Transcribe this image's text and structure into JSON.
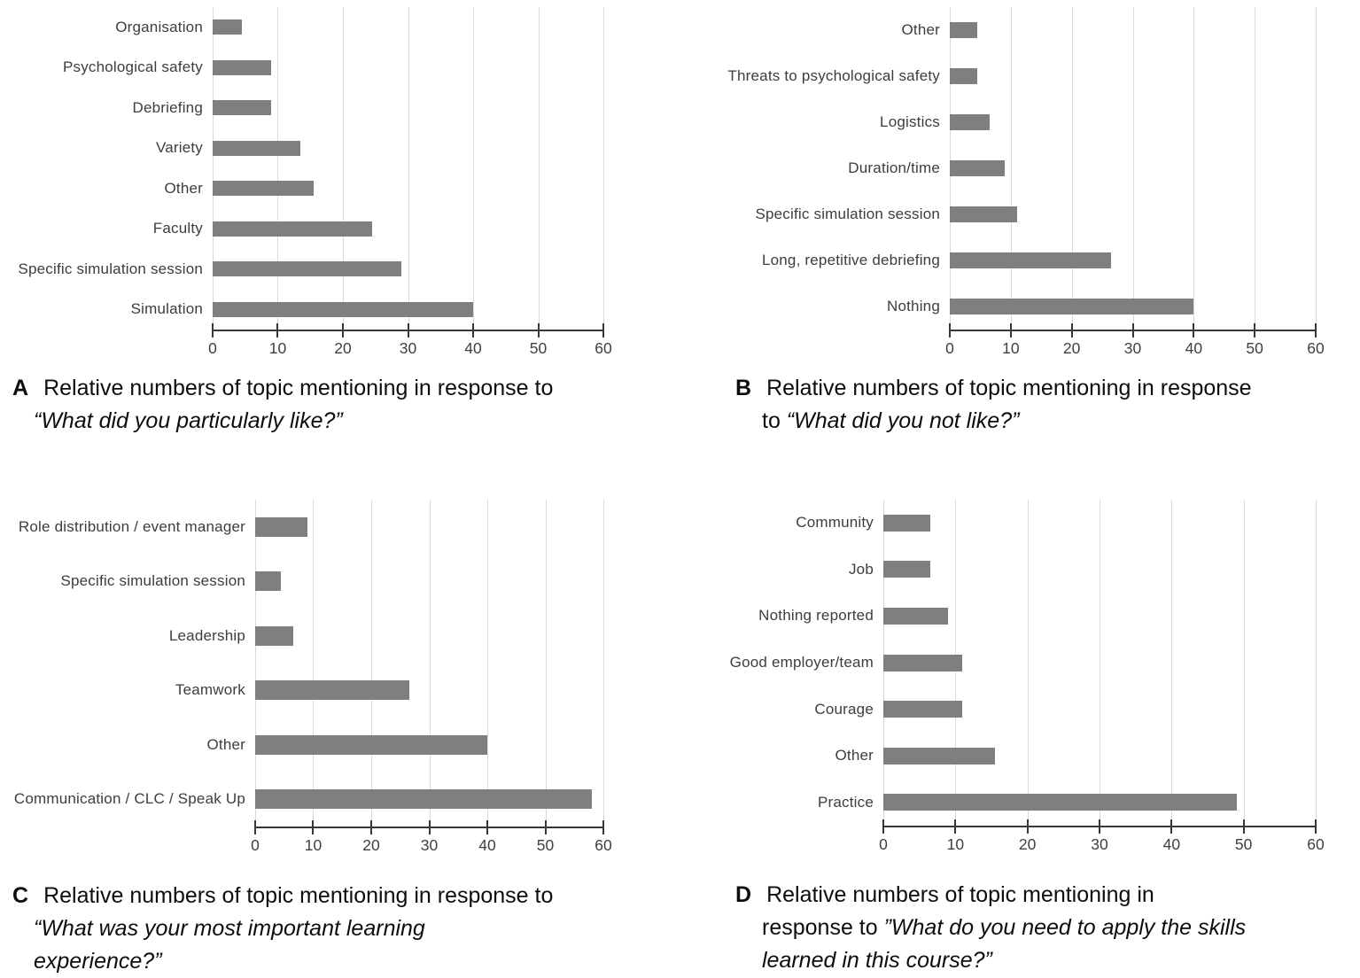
{
  "colors": {
    "background": "#ffffff",
    "bar": "#7f7f7f",
    "gridline": "#d9d9d9",
    "axis_line": "#373737",
    "tick_label": "#404040",
    "category_label": "#3d3d3d",
    "caption_text": "#0d0d0d"
  },
  "chart_data": [
    {
      "id": "A",
      "type": "bar",
      "orientation": "horizontal",
      "categories": [
        "Organisation",
        "Psychological safety",
        "Debriefing",
        "Variety",
        "Other",
        "Faculty",
        "Specific simulation session",
        "Simulation"
      ],
      "values": [
        4.5,
        9,
        9,
        13.5,
        15.5,
        24.5,
        29,
        40
      ],
      "xlabel": "",
      "ylabel": "",
      "xlim": [
        0,
        60
      ],
      "xticks": [
        0,
        10,
        20,
        30,
        40,
        50,
        60
      ],
      "grid": true,
      "caption": {
        "letter": "A",
        "lines": [
          [
            {
              "text": "Relative numbers of topic mentioning in response to",
              "italic": false
            }
          ],
          [
            {
              "text": "“What did you particularly like?”",
              "italic": true
            }
          ]
        ]
      }
    },
    {
      "id": "B",
      "type": "bar",
      "orientation": "horizontal",
      "categories": [
        "Other",
        "Threats to psychological safety",
        "Logistics",
        "Duration/time",
        "Specific simulation session",
        "Long, repetitive debriefing",
        "Nothing"
      ],
      "values": [
        4.5,
        4.5,
        6.5,
        9,
        11,
        26.5,
        40
      ],
      "xlabel": "",
      "ylabel": "",
      "xlim": [
        0,
        60
      ],
      "xticks": [
        0,
        10,
        20,
        30,
        40,
        50,
        60
      ],
      "grid": true,
      "caption": {
        "letter": "B",
        "lines": [
          [
            {
              "text": "Relative numbers of topic mentioning in response",
              "italic": false
            }
          ],
          [
            {
              "text": "to ",
              "italic": false
            },
            {
              "text": "“What did you not like?”",
              "italic": true
            }
          ]
        ]
      }
    },
    {
      "id": "C",
      "type": "bar",
      "orientation": "horizontal",
      "categories": [
        "Role distribution / event manager",
        "Specific simulation session",
        "Leadership",
        "Teamwork",
        "Other",
        "Communication / CLC / Speak Up"
      ],
      "values": [
        9,
        4.5,
        6.5,
        26.5,
        40,
        58
      ],
      "xlabel": "",
      "ylabel": "",
      "xlim": [
        0,
        60
      ],
      "xticks": [
        0,
        10,
        20,
        30,
        40,
        50,
        60
      ],
      "grid": true,
      "caption": {
        "letter": "C",
        "lines": [
          [
            {
              "text": "Relative numbers of topic mentioning in response to",
              "italic": false
            }
          ],
          [
            {
              "text": "“What was your most important learning",
              "italic": true
            }
          ],
          [
            {
              "text": "experience?”",
              "italic": true
            }
          ]
        ]
      }
    },
    {
      "id": "D",
      "type": "bar",
      "orientation": "horizontal",
      "categories": [
        "Community",
        "Job",
        "Nothing reported",
        "Good employer/team",
        "Courage",
        "Other",
        "Practice"
      ],
      "values": [
        6.5,
        6.5,
        9,
        11,
        11,
        15.5,
        49
      ],
      "xlabel": "",
      "ylabel": "",
      "xlim": [
        0,
        60
      ],
      "xticks": [
        0,
        10,
        20,
        30,
        40,
        50,
        60
      ],
      "grid": true,
      "caption": {
        "letter": "D",
        "lines": [
          [
            {
              "text": "Relative numbers of topic mentioning in",
              "italic": false
            }
          ],
          [
            {
              "text": "response to ",
              "italic": false
            },
            {
              "text": "”What do you need to apply the skills",
              "italic": true
            }
          ],
          [
            {
              "text": "learned in this course?”",
              "italic": true
            }
          ]
        ]
      }
    }
  ]
}
